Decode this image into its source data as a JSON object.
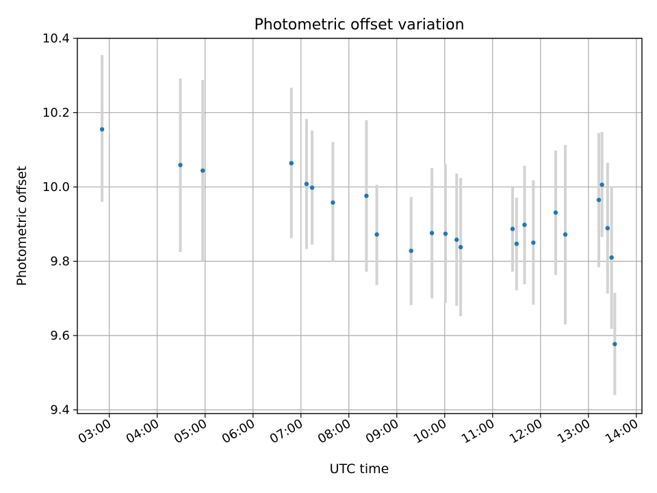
{
  "chart_data": {
    "type": "scatter",
    "title": "Photometric offset variation",
    "xlabel": "UTC time",
    "ylabel": "Photometric offset",
    "x_ticks": [
      "03:00",
      "04:00",
      "05:00",
      "06:00",
      "07:00",
      "08:00",
      "09:00",
      "10:00",
      "11:00",
      "12:00",
      "13:00",
      "14:00"
    ],
    "y_ticks": [
      9.4,
      9.6,
      9.8,
      10.0,
      10.2,
      10.4
    ],
    "ylim": [
      9.39,
      10.4
    ],
    "xlim": [
      "02:20",
      "14:07"
    ],
    "grid": true,
    "colors": {
      "point": "#1f77b4",
      "errorbar": "#d3d3d3"
    },
    "series": [
      {
        "points": [
          {
            "time": "02:51",
            "y": 10.155,
            "lo": 9.96,
            "hi": 10.355
          },
          {
            "time": "04:29",
            "y": 10.059,
            "lo": 9.825,
            "hi": 10.292
          },
          {
            "time": "04:57",
            "y": 10.044,
            "lo": 9.8,
            "hi": 10.288
          },
          {
            "time": "06:48",
            "y": 10.064,
            "lo": 9.862,
            "hi": 10.267
          },
          {
            "time": "07:07",
            "y": 10.008,
            "lo": 9.833,
            "hi": 10.183
          },
          {
            "time": "07:14",
            "y": 9.998,
            "lo": 9.845,
            "hi": 10.152
          },
          {
            "time": "07:40",
            "y": 9.958,
            "lo": 9.798,
            "hi": 10.121
          },
          {
            "time": "08:22",
            "y": 9.976,
            "lo": 9.772,
            "hi": 10.18
          },
          {
            "time": "08:35",
            "y": 9.872,
            "lo": 9.736,
            "hi": 10.006
          },
          {
            "time": "09:18",
            "y": 9.828,
            "lo": 9.682,
            "hi": 9.973
          },
          {
            "time": "09:44",
            "y": 9.876,
            "lo": 9.7,
            "hi": 10.051
          },
          {
            "time": "10:01",
            "y": 9.874,
            "lo": 9.688,
            "hi": 10.062
          },
          {
            "time": "10:15",
            "y": 9.858,
            "lo": 9.68,
            "hi": 10.036
          },
          {
            "time": "10:20",
            "y": 9.838,
            "lo": 9.652,
            "hi": 10.024
          },
          {
            "time": "11:25",
            "y": 9.887,
            "lo": 9.772,
            "hi": 10.0
          },
          {
            "time": "11:30",
            "y": 9.847,
            "lo": 9.722,
            "hi": 9.971
          },
          {
            "time": "11:40",
            "y": 9.898,
            "lo": 9.738,
            "hi": 10.057
          },
          {
            "time": "11:51",
            "y": 9.85,
            "lo": 9.683,
            "hi": 10.018
          },
          {
            "time": "12:19",
            "y": 9.931,
            "lo": 9.763,
            "hi": 10.098
          },
          {
            "time": "12:31",
            "y": 9.872,
            "lo": 9.63,
            "hi": 10.113
          },
          {
            "time": "13:13",
            "y": 9.965,
            "lo": 9.784,
            "hi": 10.145
          },
          {
            "time": "13:17",
            "y": 10.006,
            "lo": 9.865,
            "hi": 10.148
          },
          {
            "time": "13:24",
            "y": 9.889,
            "lo": 9.713,
            "hi": 10.065
          },
          {
            "time": "13:29",
            "y": 9.81,
            "lo": 9.618,
            "hi": 10.002
          },
          {
            "time": "13:33",
            "y": 9.577,
            "lo": 9.44,
            "hi": 9.715
          }
        ]
      }
    ]
  }
}
